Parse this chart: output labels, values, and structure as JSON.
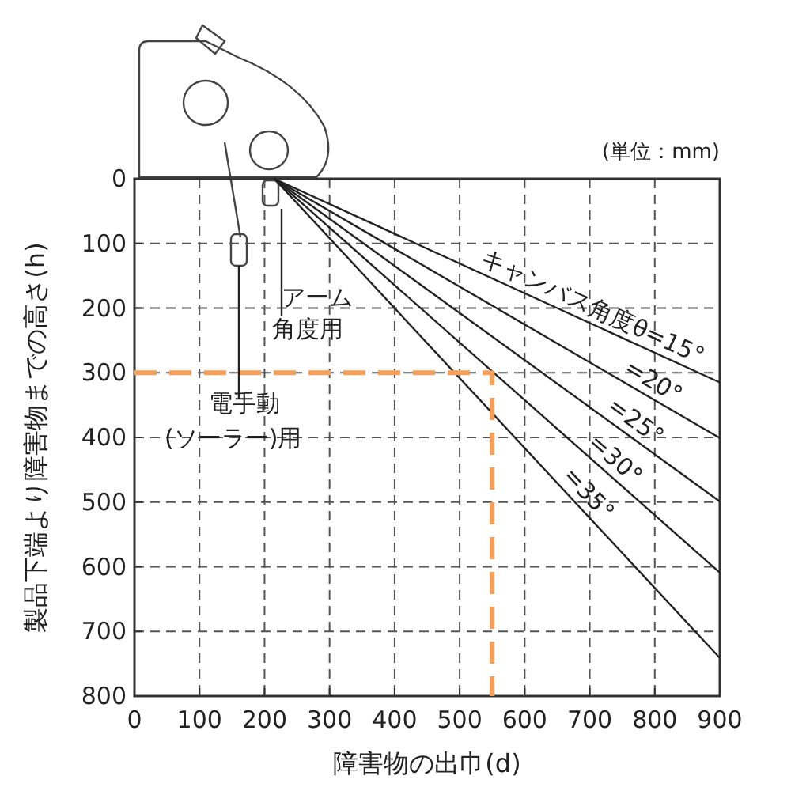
{
  "chart_data": {
    "type": "line",
    "xlabel": "障害物の出巾(d)",
    "ylabel": "製品下端より障害物までの高さ(h)",
    "annotations": [
      "(単位：mm)",
      "アーム角度用",
      "電手動\n(ソーラー)用"
    ],
    "xlim": [
      0,
      900
    ],
    "ylim": [
      800,
      0
    ],
    "xticks": [
      0,
      100,
      200,
      300,
      400,
      500,
      600,
      700,
      800,
      900
    ],
    "yticks": [
      0,
      100,
      200,
      300,
      400,
      500,
      600,
      700,
      800
    ],
    "grid": true,
    "series": [
      {
        "name": "キャンバス角度θ=15°",
        "color": "#222222",
        "x": [
          215,
          900
        ],
        "values": [
          0,
          315
        ]
      },
      {
        "name": "=20°",
        "color": "#222222",
        "x": [
          215,
          900
        ],
        "values": [
          0,
          401
        ]
      },
      {
        "name": "=25°",
        "color": "#222222",
        "x": [
          215,
          900
        ],
        "values": [
          0,
          499
        ]
      },
      {
        "name": "=30°",
        "color": "#222222",
        "x": [
          215,
          900
        ],
        "values": [
          0,
          609
        ]
      },
      {
        "name": "=35°",
        "color": "#222222",
        "x": [
          215,
          900
        ],
        "values": [
          0,
          741
        ]
      },
      {
        "color": "#f5a05a",
        "x": [
          0,
          550,
          550
        ],
        "values": [
          300,
          300,
          800
        ],
        "line_style": "dashed"
      }
    ]
  }
}
